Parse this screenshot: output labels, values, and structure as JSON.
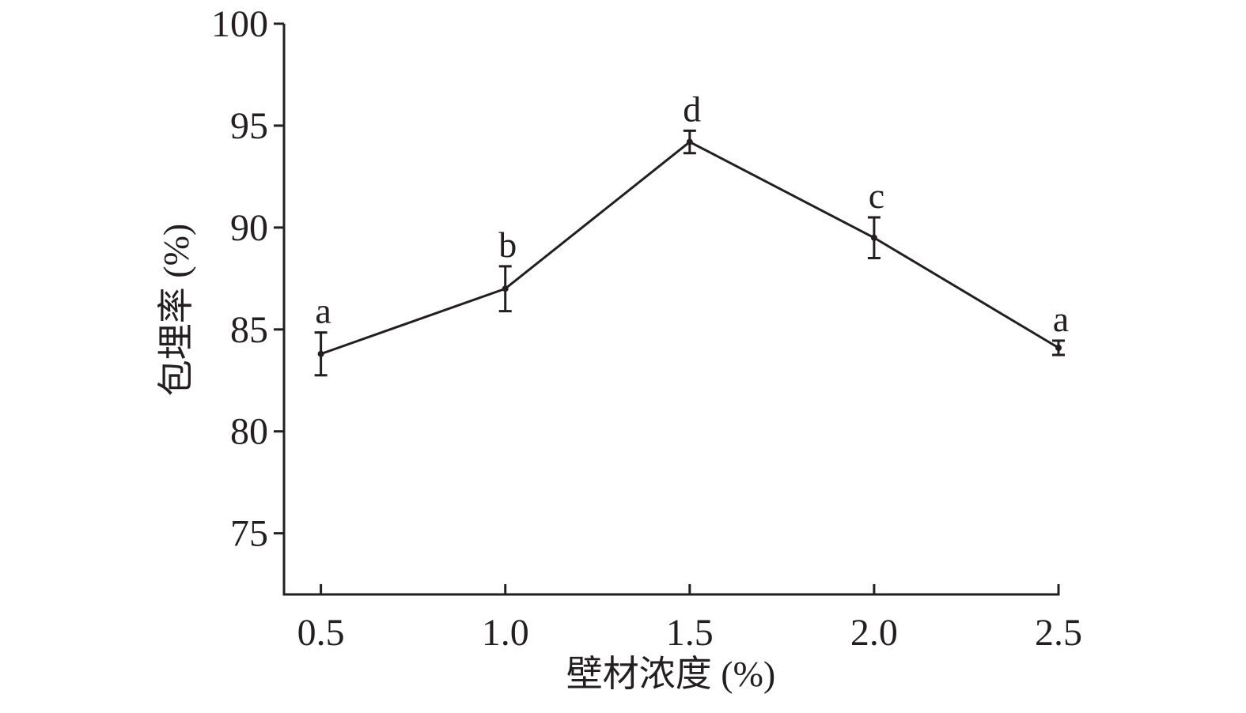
{
  "chart_data": {
    "type": "line",
    "x_label": "壁材浓度 (%)",
    "y_label": "包埋率 (%)",
    "x": [
      0.5,
      1.0,
      1.5,
      2.0,
      2.5
    ],
    "values": [
      83.8,
      87.0,
      94.2,
      89.5,
      84.1
    ],
    "errors": [
      1.05,
      1.1,
      0.55,
      1.0,
      0.35
    ],
    "annotations": [
      "a",
      "b",
      "d",
      "c",
      "a"
    ],
    "color": "#231f20",
    "xlim": [
      0.4,
      2.5
    ],
    "xticks": [
      0.5,
      {
        "value": 1.0,
        "label": "1.0"
      },
      1.5,
      {
        "value": 2.0,
        "label": "2.0"
      },
      2.5
    ],
    "ylim": [
      72,
      100
    ],
    "yticks": [
      75,
      80,
      85,
      90,
      95,
      100
    ]
  }
}
